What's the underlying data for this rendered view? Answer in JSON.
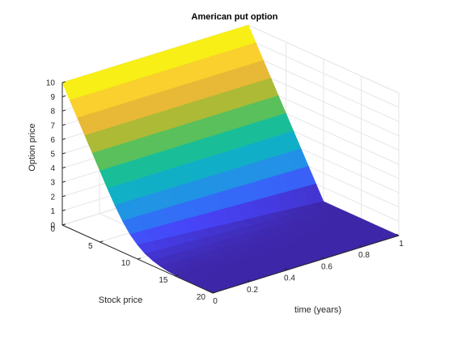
{
  "chart_data": {
    "type": "surface",
    "title": "American put option",
    "xlabel": "time (years)",
    "ylabel": "Stock price",
    "zlabel": "Option price",
    "strike": 10,
    "x_ticks": [
      "0",
      "0.2",
      "0.4",
      "0.6",
      "0.8",
      "1"
    ],
    "x_tick_values": [
      0,
      0.2,
      0.4,
      0.6,
      0.8,
      1
    ],
    "y_ticks": [
      "0",
      "5",
      "10",
      "15",
      "20"
    ],
    "y_tick_values": [
      0,
      5,
      10,
      15,
      20
    ],
    "z_ticks": [
      "0",
      "1",
      "2",
      "3",
      "4",
      "5",
      "6",
      "7",
      "8",
      "9",
      "10"
    ],
    "z_tick_values": [
      0,
      1,
      2,
      3,
      4,
      5,
      6,
      7,
      8,
      9,
      10
    ],
    "xlim": [
      0,
      1
    ],
    "ylim": [
      0,
      20
    ],
    "zlim": [
      0,
      10
    ],
    "stock_price": [
      0,
      1,
      2,
      3,
      4,
      5,
      6,
      7,
      8,
      9,
      10,
      11,
      12,
      13,
      14,
      15,
      16,
      17,
      18,
      19,
      20
    ],
    "price_at_t0": [
      10,
      9,
      8,
      7,
      6,
      5,
      4.0,
      3.05,
      2.2,
      1.5,
      1.0,
      0.62,
      0.38,
      0.22,
      0.12,
      0.06,
      0.03,
      0.01,
      0,
      0,
      0
    ],
    "price_at_t1": [
      10,
      9,
      8,
      7,
      6,
      5,
      4,
      3,
      2,
      1,
      0,
      0,
      0,
      0,
      0,
      0,
      0,
      0,
      0,
      0,
      0
    ],
    "colormap": [
      "#3e26a8",
      "#4743f8",
      "#2b7df6",
      "#1aa3d8",
      "#08bbb6",
      "#2ac17b",
      "#87bf3c",
      "#d3b530",
      "#fdbc3c",
      "#f5e31e",
      "#f9fb0e"
    ]
  }
}
